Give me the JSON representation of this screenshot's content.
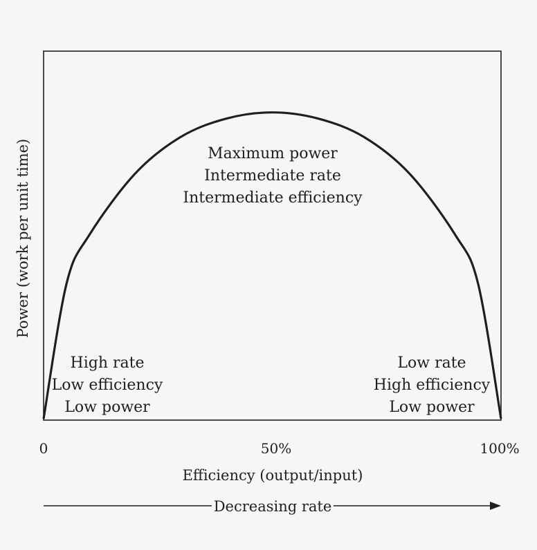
{
  "chart_data": {
    "type": "line",
    "title": "",
    "xlabel": "Efficiency (output/input)",
    "ylabel": "Power (work per unit time)",
    "x_tick_labels": [
      "0",
      "50%",
      "100%"
    ],
    "xlim": [
      0,
      100
    ],
    "ylim": [
      0,
      1.2
    ],
    "grid": false,
    "series": [
      {
        "x": [
          0,
          5,
          10,
          20,
          30,
          40,
          50,
          60,
          70,
          80,
          90,
          95,
          100
        ],
        "values": [
          0,
          0.44,
          0.6,
          0.8,
          0.92,
          0.98,
          1.0,
          0.98,
          0.92,
          0.8,
          0.6,
          0.44,
          0
        ]
      }
    ],
    "annotations": {
      "top": [
        "Maximum power",
        "Intermediate rate",
        "Intermediate efficiency"
      ],
      "left": [
        "High rate",
        "Low efficiency",
        "Low power"
      ],
      "right": [
        "Low rate",
        "High efficiency",
        "Low power"
      ]
    },
    "arrow_label": "Decreasing rate"
  }
}
